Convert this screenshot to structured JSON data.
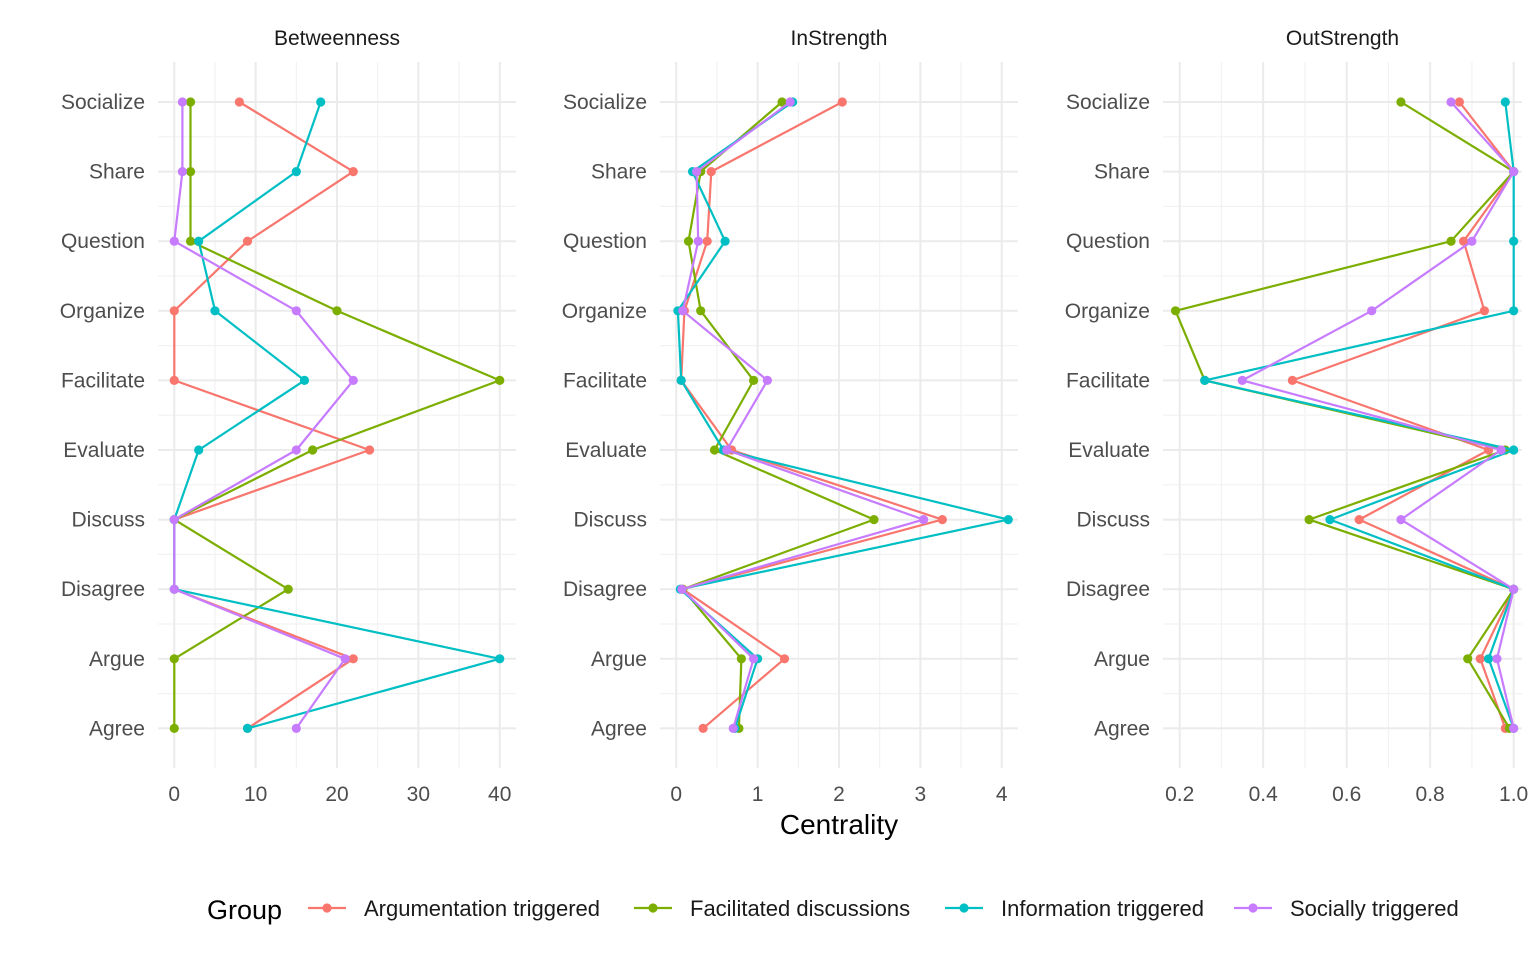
{
  "chart_data": {
    "type": "line",
    "xlabel": "Centrality",
    "ylabel": "",
    "categories": [
      "Agree",
      "Argue",
      "Disagree",
      "Discuss",
      "Evaluate",
      "Facilitate",
      "Organize",
      "Question",
      "Share",
      "Socialize"
    ],
    "legend": {
      "title": "Group",
      "position": "bottom",
      "entries": [
        "Argumentation triggered",
        "Facilitated discussions",
        "Information triggered",
        "Socially triggered"
      ]
    },
    "colors": {
      "Argumentation triggered": "#F8766D",
      "Facilitated discussions": "#7CAE00",
      "Information triggered": "#00BFC4",
      "Socially triggered": "#C77CFF"
    },
    "grid": true,
    "panels": [
      {
        "title": "Betweenness",
        "xlim": [
          -2,
          42
        ],
        "xticks": [
          0,
          10,
          20,
          30,
          40
        ],
        "tick_labels": [
          "0",
          "10",
          "20",
          "30",
          "40"
        ],
        "series": [
          {
            "name": "Argumentation triggered",
            "values": [
              9,
              22,
              0,
              0,
              24,
              0,
              0,
              9,
              22,
              8
            ]
          },
          {
            "name": "Facilitated discussions",
            "values": [
              0,
              0,
              14,
              0,
              17,
              40,
              20,
              2,
              2,
              2
            ]
          },
          {
            "name": "Information triggered",
            "values": [
              9,
              40,
              0,
              0,
              3,
              16,
              5,
              3,
              15,
              18
            ]
          },
          {
            "name": "Socially triggered",
            "values": [
              15,
              21,
              0,
              0,
              15,
              22,
              15,
              0,
              1,
              1
            ]
          }
        ]
      },
      {
        "title": "InStrength",
        "xlim": [
          -0.2,
          4.2
        ],
        "xticks": [
          0,
          1,
          2,
          3,
          4
        ],
        "tick_labels": [
          "0",
          "1",
          "2",
          "3",
          "4"
        ],
        "series": [
          {
            "name": "Argumentation triggered",
            "values": [
              0.33,
              1.33,
              0.08,
              3.27,
              0.68,
              0.06,
              0.1,
              0.38,
              0.43,
              2.04
            ]
          },
          {
            "name": "Facilitated discussions",
            "values": [
              0.77,
              0.8,
              0.08,
              2.43,
              0.47,
              0.95,
              0.3,
              0.15,
              0.3,
              1.3
            ]
          },
          {
            "name": "Information triggered",
            "values": [
              0.72,
              1.0,
              0.05,
              4.08,
              0.58,
              0.06,
              0.02,
              0.6,
              0.2,
              1.43
            ]
          },
          {
            "name": "Socially triggered",
            "values": [
              0.7,
              0.95,
              0.07,
              3.04,
              0.62,
              1.12,
              0.08,
              0.27,
              0.25,
              1.4
            ]
          }
        ]
      },
      {
        "title": "OutStrength",
        "xlim": [
          0.16,
          1.02
        ],
        "xticks": [
          0.2,
          0.4,
          0.6,
          0.8,
          1.0
        ],
        "tick_labels": [
          "0.2",
          "0.4",
          "0.6",
          "0.8",
          "1.0"
        ],
        "series": [
          {
            "name": "Argumentation triggered",
            "values": [
              0.98,
              0.92,
              1.0,
              0.63,
              0.94,
              0.47,
              0.93,
              0.88,
              1.0,
              0.87
            ]
          },
          {
            "name": "Facilitated discussions",
            "values": [
              0.99,
              0.89,
              1.0,
              0.51,
              0.98,
              0.26,
              0.19,
              0.85,
              1.0,
              0.73
            ]
          },
          {
            "name": "Information triggered",
            "values": [
              1.0,
              0.94,
              1.0,
              0.56,
              1.0,
              0.26,
              1.0,
              1.0,
              1.0,
              0.98
            ]
          },
          {
            "name": "Socially triggered",
            "values": [
              1.0,
              0.96,
              1.0,
              0.73,
              0.97,
              0.35,
              0.66,
              0.9,
              1.0,
              0.85
            ]
          }
        ]
      }
    ]
  }
}
